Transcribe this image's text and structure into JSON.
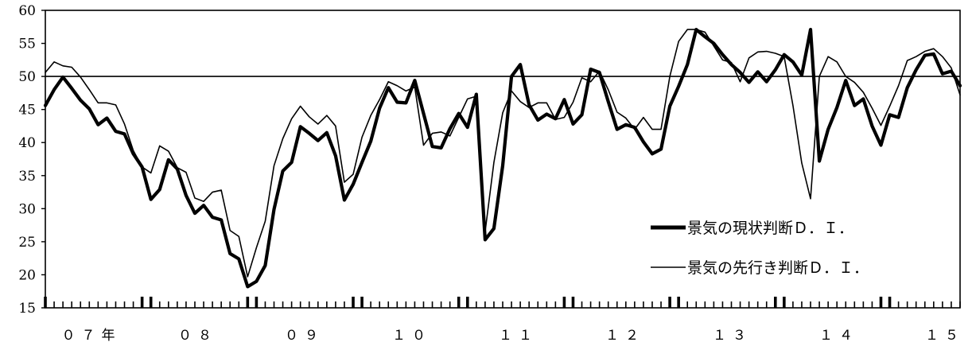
{
  "chart_data": {
    "type": "line",
    "title": "",
    "xlabel": "",
    "ylabel": "",
    "ylim": [
      15,
      60
    ],
    "yticks": [
      15,
      20,
      25,
      30,
      35,
      40,
      45,
      50,
      55,
      60
    ],
    "reference_line": 50,
    "x_start": "2007-01",
    "x_end": "2015-05",
    "year_labels": [
      "０７年",
      "０８",
      "０９",
      "１０",
      "１１",
      "１２",
      "１３",
      "１４",
      "１５"
    ],
    "legend_position": "bottom-right",
    "series": [
      {
        "name": "景気の現状判断Ｄ．Ｉ．",
        "style": "thick",
        "values": [
          45.6,
          48.0,
          49.9,
          48.2,
          46.4,
          45.1,
          42.7,
          43.7,
          41.7,
          41.3,
          38.3,
          36.3,
          31.4,
          32.9,
          37.4,
          36.0,
          32.0,
          29.3,
          30.5,
          28.7,
          28.3,
          23.2,
          22.4,
          18.2,
          19.0,
          21.4,
          29.9,
          35.7,
          37.0,
          42.4,
          41.4,
          40.3,
          41.5,
          38.0,
          31.3,
          33.7,
          37.0,
          40.2,
          45.2,
          48.3,
          46.1,
          46.0,
          49.4,
          44.4,
          39.4,
          39.2,
          42.1,
          44.4,
          42.3,
          47.3,
          25.3,
          27.0,
          36.5,
          50.0,
          51.8,
          45.7,
          43.4,
          44.3,
          43.6,
          46.5,
          42.8,
          44.2,
          51.1,
          50.6,
          46.2,
          42.0,
          42.7,
          42.3,
          40.1,
          38.3,
          39.0,
          45.5,
          48.5,
          51.8,
          57.1,
          56.0,
          55.0,
          53.3,
          51.8,
          50.6,
          49.1,
          50.7,
          49.2,
          51.0,
          53.3,
          52.2,
          50.2,
          57.1,
          37.2,
          42.0,
          45.3,
          49.4,
          45.6,
          46.6,
          42.5,
          39.6,
          44.2,
          43.8,
          48.3,
          51.0,
          53.2,
          53.4,
          50.4,
          50.8,
          48.6
        ],
        "color": "#000000"
      },
      {
        "name": "景気の先行き判断Ｄ．Ｉ．",
        "style": "thin",
        "values": [
          50.6,
          52.2,
          51.6,
          51.4,
          49.9,
          48.0,
          46.0,
          46.0,
          45.7,
          42.8,
          38.8,
          36.3,
          35.4,
          39.5,
          38.7,
          36.2,
          35.5,
          31.6,
          31.1,
          32.5,
          32.8,
          26.7,
          25.8,
          19.7,
          24.1,
          28.1,
          36.5,
          40.6,
          43.6,
          45.5,
          43.9,
          42.8,
          44.1,
          42.5,
          34.0,
          35.2,
          40.8,
          44.1,
          46.5,
          49.2,
          48.6,
          47.8,
          48.4,
          39.6,
          41.4,
          41.6,
          41.0,
          43.8,
          46.6,
          47.0,
          26.5,
          37.0,
          44.5,
          47.8,
          46.2,
          45.3,
          46.0,
          46.0,
          43.5,
          43.8,
          46.1,
          49.8,
          49.2,
          50.8,
          48.0,
          44.6,
          43.7,
          42.0,
          43.8,
          42.0,
          42.0,
          50.0,
          55.3,
          57.1,
          57.1,
          56.7,
          54.6,
          52.5,
          52.1,
          49.2,
          52.8,
          53.7,
          53.8,
          53.5,
          53.0,
          45.6,
          36.9,
          31.5,
          50.0,
          53.0,
          52.2,
          50.0,
          49.1,
          47.6,
          45.2,
          42.6,
          45.5,
          48.6,
          52.4,
          53.0,
          53.8,
          54.2,
          53.0,
          51.3,
          47.2
        ],
        "color": "#000000"
      }
    ]
  }
}
